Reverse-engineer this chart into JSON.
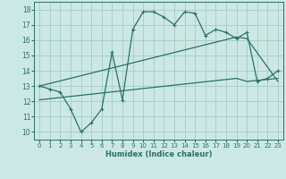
{
  "xlabel": "Humidex (Indice chaleur)",
  "bg_color": "#cce8e4",
  "line_color": "#2a7068",
  "grid_color": "#aacfca",
  "xlim": [
    -0.5,
    23.5
  ],
  "ylim": [
    9.5,
    18.5
  ],
  "xticks": [
    0,
    1,
    2,
    3,
    4,
    5,
    6,
    7,
    8,
    9,
    10,
    11,
    12,
    13,
    14,
    15,
    16,
    17,
    18,
    19,
    20,
    21,
    22,
    23
  ],
  "yticks": [
    10,
    11,
    12,
    13,
    14,
    15,
    16,
    17,
    18
  ],
  "main_line": {
    "x": [
      0,
      1,
      2,
      3,
      4,
      5,
      6,
      7,
      8,
      9,
      10,
      11,
      12,
      13,
      14,
      15,
      16,
      17,
      18,
      19,
      20,
      21,
      22,
      23
    ],
    "y": [
      13.0,
      12.8,
      12.6,
      11.5,
      10.0,
      10.6,
      11.5,
      15.2,
      12.1,
      16.7,
      17.85,
      17.85,
      17.5,
      17.0,
      17.85,
      17.75,
      16.3,
      16.7,
      16.5,
      16.1,
      16.5,
      13.3,
      13.5,
      14.0
    ]
  },
  "reg_line1": {
    "x": [
      0,
      19,
      20,
      23
    ],
    "y": [
      13.0,
      16.2,
      16.1,
      13.3
    ]
  },
  "reg_line2": {
    "x": [
      0,
      19,
      20,
      23
    ],
    "y": [
      12.1,
      13.5,
      13.3,
      13.5
    ]
  }
}
